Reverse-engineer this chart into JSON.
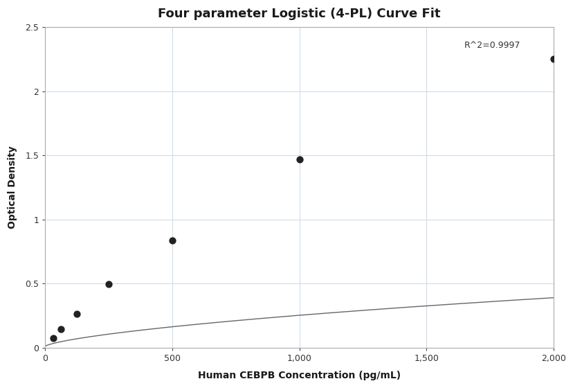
{
  "title": "Four parameter Logistic (4-PL) Curve Fit",
  "xlabel": "Human CEBPB Concentration (pg/mL)",
  "ylabel": "Optical Density",
  "r_squared": "R^2=0.9997",
  "data_x": [
    31.3,
    62.5,
    125,
    250,
    500,
    1000,
    2000
  ],
  "data_y": [
    0.072,
    0.145,
    0.265,
    0.493,
    0.835,
    1.468,
    2.254
  ],
  "xlim": [
    0,
    2000
  ],
  "ylim": [
    0,
    2.5
  ],
  "xticks": [
    0,
    500,
    1000,
    1500,
    2000
  ],
  "yticks": [
    0,
    0.5,
    1.0,
    1.5,
    2.0,
    2.5
  ],
  "curve_color": "#666666",
  "marker_color": "#222222",
  "marker_size": 55,
  "grid_color": "#c8d8ea",
  "background_color": "#ffffff",
  "title_fontsize": 13,
  "label_fontsize": 10,
  "tick_fontsize": 9,
  "annotation_fontsize": 9,
  "r2_x": 1870,
  "r2_y": 2.32
}
